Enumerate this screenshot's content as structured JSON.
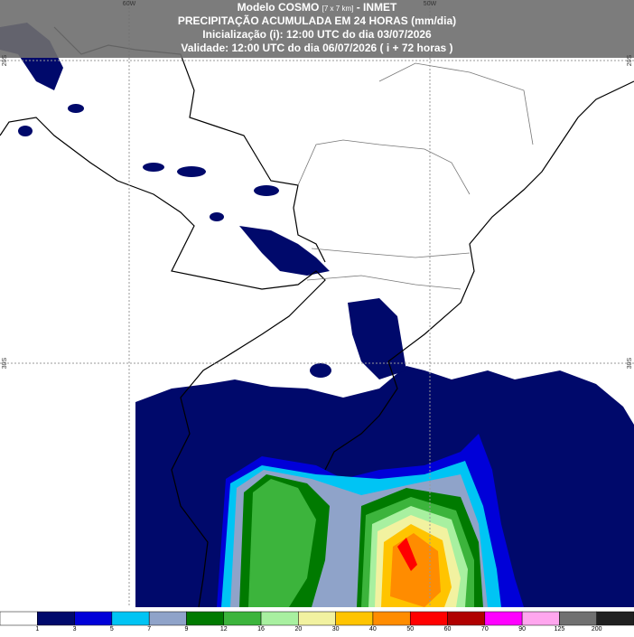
{
  "header": {
    "model": "Modelo COSMO",
    "resolution": "[7 x 7 km]",
    "institute": "- INMET",
    "title": "PRECIPITAÇÃO ACUMULADA EM 24 HORAS (mm/dia)",
    "init": "Inicialização (i): 12:00 UTC do dia 03/07/2026",
    "valid": "Validade: 12:00 UTC do dia 06/07/2026 ( i + 72 horas )"
  },
  "grid": {
    "lon": [
      "60W",
      "50W"
    ],
    "lat": [
      "20S",
      "30S"
    ]
  },
  "colorbar": {
    "labels": [
      "1",
      "3",
      "5",
      "7",
      "9",
      "12",
      "16",
      "20",
      "30",
      "40",
      "50",
      "60",
      "70",
      "90",
      "125",
      "200"
    ],
    "colors": [
      "#ffffff",
      "#00096b",
      "#0000d8",
      "#00c4f4",
      "#8fa3c9",
      "#007a00",
      "#3cb43c",
      "#a8f0a0",
      "#f2f2a0",
      "#ffc400",
      "#ff8c00",
      "#ff0000",
      "#b00000",
      "#ff00ff",
      "#ffa6ee",
      "#707070",
      "#202020"
    ]
  }
}
